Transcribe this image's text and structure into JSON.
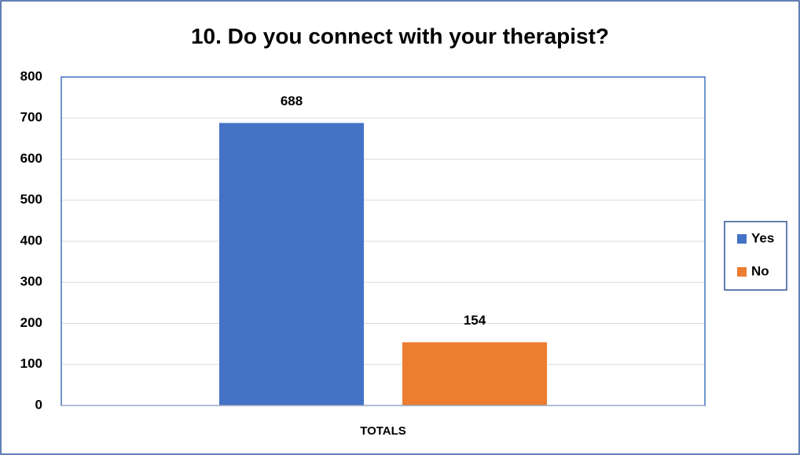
{
  "chart_data": {
    "type": "bar",
    "title": "10. Do you connect with your therapist?",
    "categories": [
      "TOTALS"
    ],
    "series": [
      {
        "name": "Yes",
        "color": "#4472c4",
        "values": [
          688
        ]
      },
      {
        "name": "No",
        "color": "#ed7d31",
        "values": [
          154
        ]
      }
    ],
    "ylim": [
      0,
      800
    ],
    "yticks": [
      0,
      100,
      200,
      300,
      400,
      500,
      600,
      700,
      800
    ],
    "grid": true,
    "legend": "right"
  }
}
